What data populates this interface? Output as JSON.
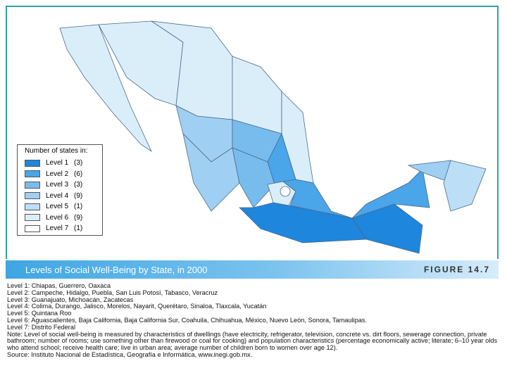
{
  "legend": {
    "title": "Number of states in:",
    "items": [
      {
        "label": "Level 1",
        "count": "(3)",
        "color": "#1e86dc"
      },
      {
        "label": "Level 2",
        "count": "(6)",
        "color": "#4aa5e9"
      },
      {
        "label": "Level 3",
        "count": "(3)",
        "color": "#78bcee"
      },
      {
        "label": "Level 4",
        "count": "(9)",
        "color": "#9fd0f3"
      },
      {
        "label": "Level 5",
        "count": "(1)",
        "color": "#bcdff7"
      },
      {
        "label": "Level 6",
        "count": "(9)",
        "color": "#daeefa"
      },
      {
        "label": "Level 7",
        "count": "(1)",
        "color": "#ffffff"
      }
    ]
  },
  "banner": {
    "title": "Levels of Social Well-Being by State, in 2000",
    "figure": "FIGURE 14.7"
  },
  "notes": [
    "Level 1: Chiapas, Guerrero, Oaxaca",
    "Level 2: Campeche, Hidalgo, Puebla, San Luis Potosí, Tabasco, Veracruz",
    "Level 3: Guanajuato, Michoacán, Zacatecas",
    "Level 4: Colima, Durango, Jalisco, Morelos, Nayarit, Querétaro, Sinaloa, Tlaxcala, Yucatán",
    "Level 5: Quintana Roo",
    "Level 6: Aguascalientes, Baja California, Baja California Sur, Coahuila, Chihuahua, México, Nuevo León, Sonora, Tamaulipas.",
    "Level 7: Distrito Federal",
    "Note: Level of social well-being is measured by characteristics of dwellings (have electricity, refrigerator, television, concrete vs. dirt floors, sewerage connection, private bathroom; number of rooms; use something other than firewood or coal for cooking) and population characteristics (percentage economically active; literate; 6–10 year olds who attend school; receive health care; live in urban area; average number of children born to women over age 12).",
    "Source: Instituto Nacional de Estadística, Geografía e Informática, www.inegi.gob.mx."
  ]
}
